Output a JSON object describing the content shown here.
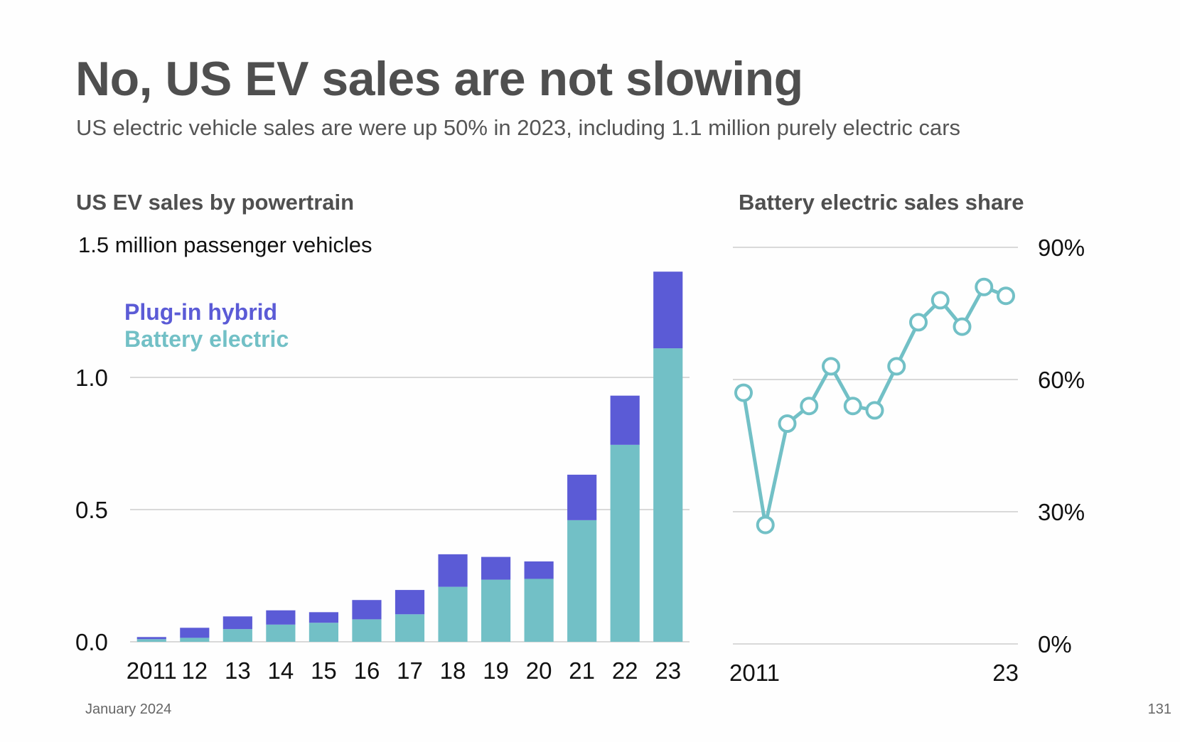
{
  "title": "No, US EV sales are not slowing",
  "subtitle": "US electric vehicle sales are were up 50% in 2023, including 1.1 million purely electric cars",
  "footer": {
    "date": "January 2024",
    "page": "131"
  },
  "colors": {
    "plugin_hybrid": "#5b5bd6",
    "battery_electric": "#72c0c6",
    "grid": "#d9d9d9",
    "title": "#4f4f4f"
  },
  "chart_data": [
    {
      "type": "bar",
      "stacked": true,
      "title": "US EV sales by powertrain",
      "ylabel": "1.5 million passenger vehicles",
      "categories": [
        "2011",
        "12",
        "13",
        "14",
        "15",
        "16",
        "17",
        "18",
        "19",
        "20",
        "21",
        "22",
        "23"
      ],
      "series": [
        {
          "name": "Battery electric",
          "values": [
            0.01,
            0.015,
            0.048,
            0.065,
            0.072,
            0.085,
            0.104,
            0.208,
            0.235,
            0.238,
            0.46,
            0.745,
            1.11
          ]
        },
        {
          "name": "Plug-in hybrid",
          "values": [
            0.008,
            0.038,
            0.048,
            0.054,
            0.04,
            0.073,
            0.092,
            0.123,
            0.086,
            0.066,
            0.172,
            0.186,
            0.29
          ]
        }
      ],
      "yticks": [
        "0.0",
        "0.5",
        "1.0"
      ],
      "ylim": [
        0,
        1.5
      ],
      "legend": [
        "Plug-in hybrid",
        "Battery electric"
      ],
      "legend_position": "top-left"
    },
    {
      "type": "line",
      "title": "Battery electric sales share",
      "x": [
        2011,
        2012,
        2013,
        2014,
        2015,
        2016,
        2017,
        2018,
        2019,
        2020,
        2021,
        2022,
        2023
      ],
      "values": [
        57,
        27,
        50,
        54,
        63,
        54,
        53,
        63,
        73,
        78,
        72,
        81,
        79
      ],
      "xtick_labels": [
        "2011",
        "23"
      ],
      "yticks": [
        "0%",
        "30%",
        "60%",
        "90%"
      ],
      "ylim": [
        0,
        90
      ]
    }
  ]
}
